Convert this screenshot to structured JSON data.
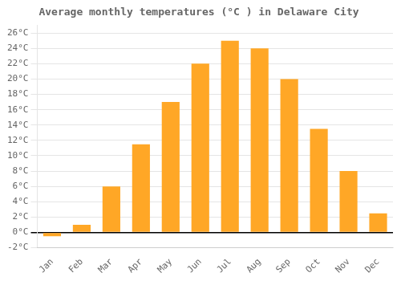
{
  "chart_data": {
    "type": "bar",
    "title": "Average monthly temperatures (°C ) in Delaware City",
    "categories": [
      "Jan",
      "Feb",
      "Mar",
      "Apr",
      "May",
      "Jun",
      "Jul",
      "Aug",
      "Sep",
      "Oct",
      "Nov",
      "Dec"
    ],
    "values": [
      -0.5,
      1.0,
      6.0,
      11.5,
      17.0,
      22.0,
      25.0,
      24.0,
      20.0,
      13.5,
      8.0,
      2.5
    ],
    "color": "#FFA726",
    "ylim": [
      -2,
      27
    ],
    "yticks": [
      {
        "value": -2,
        "label": "-2°C"
      },
      {
        "value": 0,
        "label": "0°C"
      },
      {
        "value": 2,
        "label": "2°C"
      },
      {
        "value": 4,
        "label": "4°C"
      },
      {
        "value": 6,
        "label": "6°C"
      },
      {
        "value": 8,
        "label": "8°C"
      },
      {
        "value": 10,
        "label": "10°C"
      },
      {
        "value": 12,
        "label": "12°C"
      },
      {
        "value": 14,
        "label": "14°C"
      },
      {
        "value": 16,
        "label": "16°C"
      },
      {
        "value": 18,
        "label": "18°C"
      },
      {
        "value": 20,
        "label": "20°C"
      },
      {
        "value": 22,
        "label": "22°C"
      },
      {
        "value": 24,
        "label": "24°C"
      },
      {
        "value": 26,
        "label": "26°C"
      }
    ],
    "grid": true
  }
}
